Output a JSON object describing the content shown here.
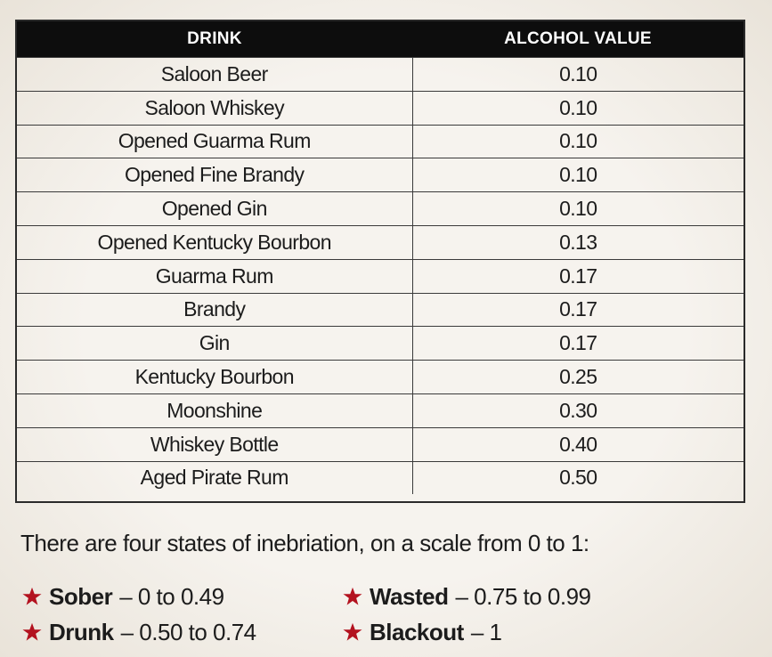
{
  "table": {
    "headers": [
      "DRINK",
      "ALCOHOL VALUE"
    ],
    "rows": [
      [
        "Saloon Beer",
        "0.10"
      ],
      [
        "Saloon Whiskey",
        "0.10"
      ],
      [
        "Opened Guarma Rum",
        "0.10"
      ],
      [
        "Opened Fine Brandy",
        "0.10"
      ],
      [
        "Opened Gin",
        "0.10"
      ],
      [
        "Opened Kentucky Bourbon",
        "0.13"
      ],
      [
        "Guarma Rum",
        "0.17"
      ],
      [
        "Brandy",
        "0.17"
      ],
      [
        "Gin",
        "0.17"
      ],
      [
        "Kentucky Bourbon",
        "0.25"
      ],
      [
        "Moonshine",
        "0.30"
      ],
      [
        "Whiskey Bottle",
        "0.40"
      ],
      [
        "Aged Pirate Rum",
        "0.50"
      ]
    ]
  },
  "intro": "There are four states of inebriation, on a scale from 0 to 1:",
  "states": [
    {
      "name": "Sober",
      "range": "– 0 to 0.49"
    },
    {
      "name": "Drunk",
      "range": "– 0.50 to 0.74"
    },
    {
      "name": "Wasted",
      "range": "– 0.75 to 0.99"
    },
    {
      "name": "Blackout",
      "range": "– 1"
    }
  ]
}
